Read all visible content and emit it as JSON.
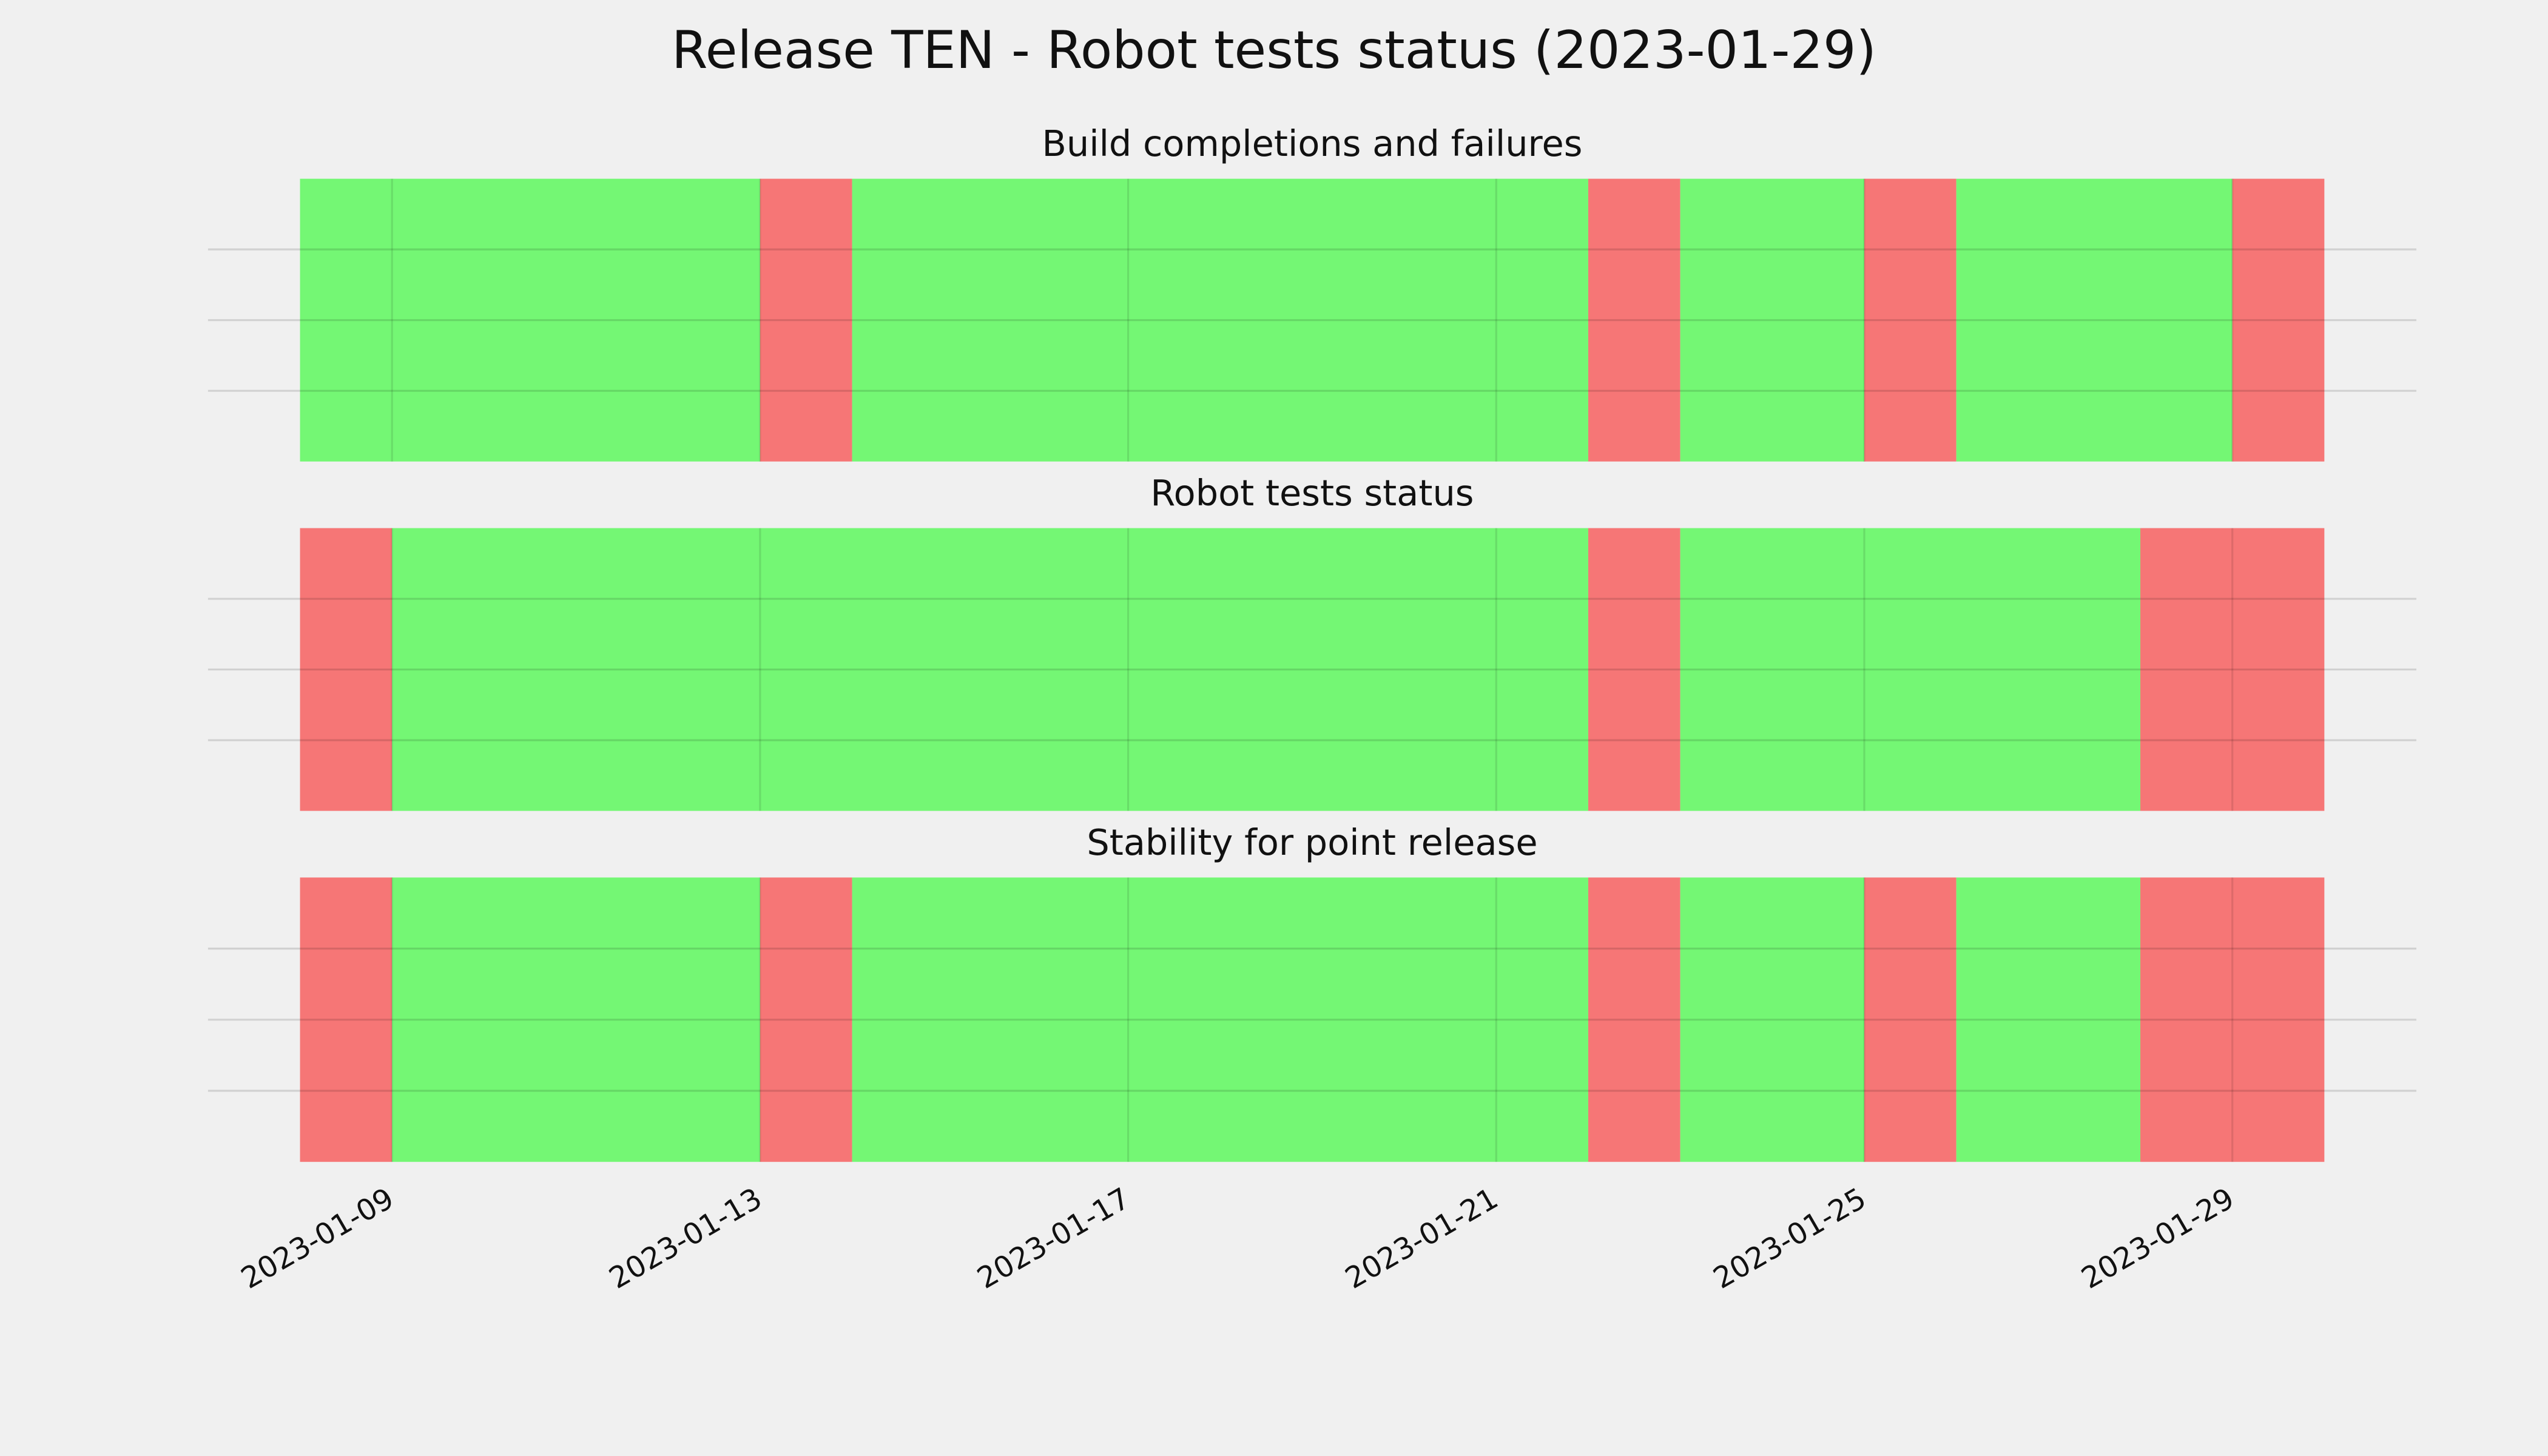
{
  "title": "Release TEN - Robot tests status (2023-01-29)",
  "chart_data": [
    {
      "type": "timeline",
      "title": "Build completions and failures",
      "segments": [
        {
          "start": "2023-01-08",
          "end": "2023-01-13",
          "color": "#74f774"
        },
        {
          "start": "2023-01-13",
          "end": "2023-01-14",
          "color": "#f67676"
        },
        {
          "start": "2023-01-14",
          "end": "2023-01-22",
          "color": "#74f774"
        },
        {
          "start": "2023-01-22",
          "end": "2023-01-23",
          "color": "#f67676"
        },
        {
          "start": "2023-01-23",
          "end": "2023-01-25",
          "color": "#74f774"
        },
        {
          "start": "2023-01-25",
          "end": "2023-01-26",
          "color": "#f67676"
        },
        {
          "start": "2023-01-26",
          "end": "2023-01-29",
          "color": "#74f774"
        },
        {
          "start": "2023-01-29",
          "end": "2023-01-30",
          "color": "#f67676"
        }
      ]
    },
    {
      "type": "timeline",
      "title": "Robot tests status",
      "segments": [
        {
          "start": "2023-01-08",
          "end": "2023-01-09",
          "color": "#f67676"
        },
        {
          "start": "2023-01-09",
          "end": "2023-01-22",
          "color": "#74f774"
        },
        {
          "start": "2023-01-22",
          "end": "2023-01-23",
          "color": "#f67676"
        },
        {
          "start": "2023-01-23",
          "end": "2023-01-28",
          "color": "#74f774"
        },
        {
          "start": "2023-01-28",
          "end": "2023-01-30",
          "color": "#f67676"
        }
      ]
    },
    {
      "type": "timeline",
      "title": "Stability for point release",
      "xlim": [
        "2023-01-07",
        "2023-01-31"
      ],
      "xticks": [
        "2023-01-09",
        "2023-01-13",
        "2023-01-17",
        "2023-01-21",
        "2023-01-25",
        "2023-01-29"
      ],
      "segments": [
        {
          "start": "2023-01-08",
          "end": "2023-01-09",
          "color": "#f67676"
        },
        {
          "start": "2023-01-09",
          "end": "2023-01-13",
          "color": "#74f774"
        },
        {
          "start": "2023-01-13",
          "end": "2023-01-14",
          "color": "#f67676"
        },
        {
          "start": "2023-01-14",
          "end": "2023-01-22",
          "color": "#74f774"
        },
        {
          "start": "2023-01-22",
          "end": "2023-01-23",
          "color": "#f67676"
        },
        {
          "start": "2023-01-23",
          "end": "2023-01-25",
          "color": "#74f774"
        },
        {
          "start": "2023-01-25",
          "end": "2023-01-26",
          "color": "#f67676"
        },
        {
          "start": "2023-01-26",
          "end": "2023-01-28",
          "color": "#74f774"
        },
        {
          "start": "2023-01-28",
          "end": "2023-01-30",
          "color": "#f67676"
        }
      ]
    }
  ]
}
